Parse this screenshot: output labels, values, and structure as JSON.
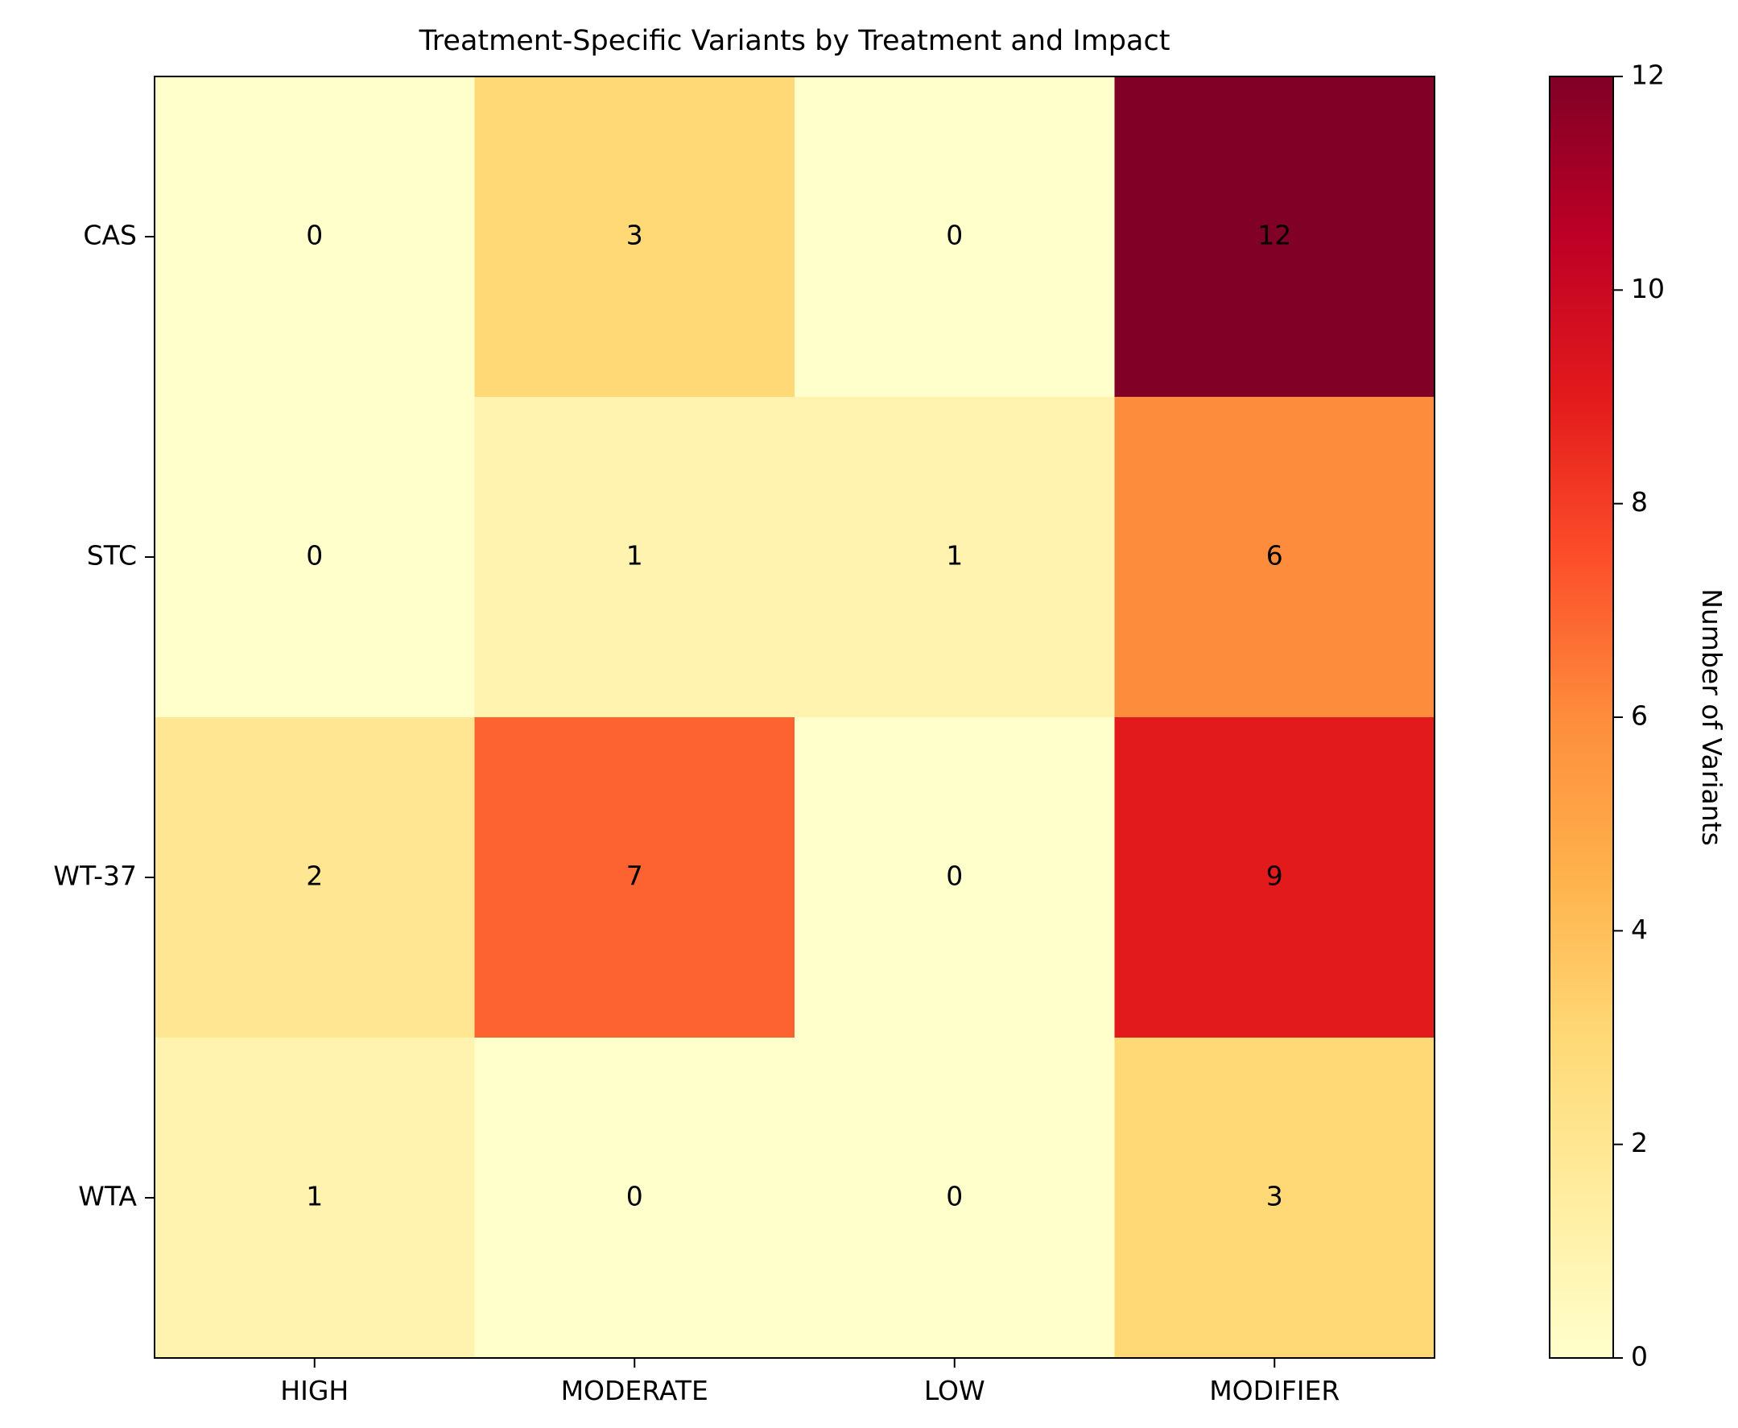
{
  "chart_data": {
    "type": "heatmap",
    "title": "Treatment-Specific Variants by Treatment and Impact",
    "xlabel": "",
    "ylabel": "",
    "x_categories": [
      "HIGH",
      "MODERATE",
      "LOW",
      "MODIFIER"
    ],
    "y_categories": [
      "CAS",
      "STC",
      "WT-37",
      "WTA"
    ],
    "values": [
      [
        0,
        3,
        0,
        12
      ],
      [
        0,
        1,
        1,
        6
      ],
      [
        2,
        7,
        0,
        9
      ],
      [
        1,
        0,
        0,
        3
      ]
    ],
    "colorbar": {
      "label": "Number of Variants",
      "range": [
        0,
        12
      ],
      "ticks": [
        0,
        2,
        4,
        6,
        8,
        10,
        12
      ],
      "colormap": "YlOrRd",
      "colors": [
        "#ffffcc",
        "#ffeda0",
        "#fed976",
        "#feb24c",
        "#fd8d3c",
        "#fc4e2a",
        "#e31a1c",
        "#bd0026",
        "#800026"
      ]
    },
    "cell_labels": true,
    "grid": false
  }
}
